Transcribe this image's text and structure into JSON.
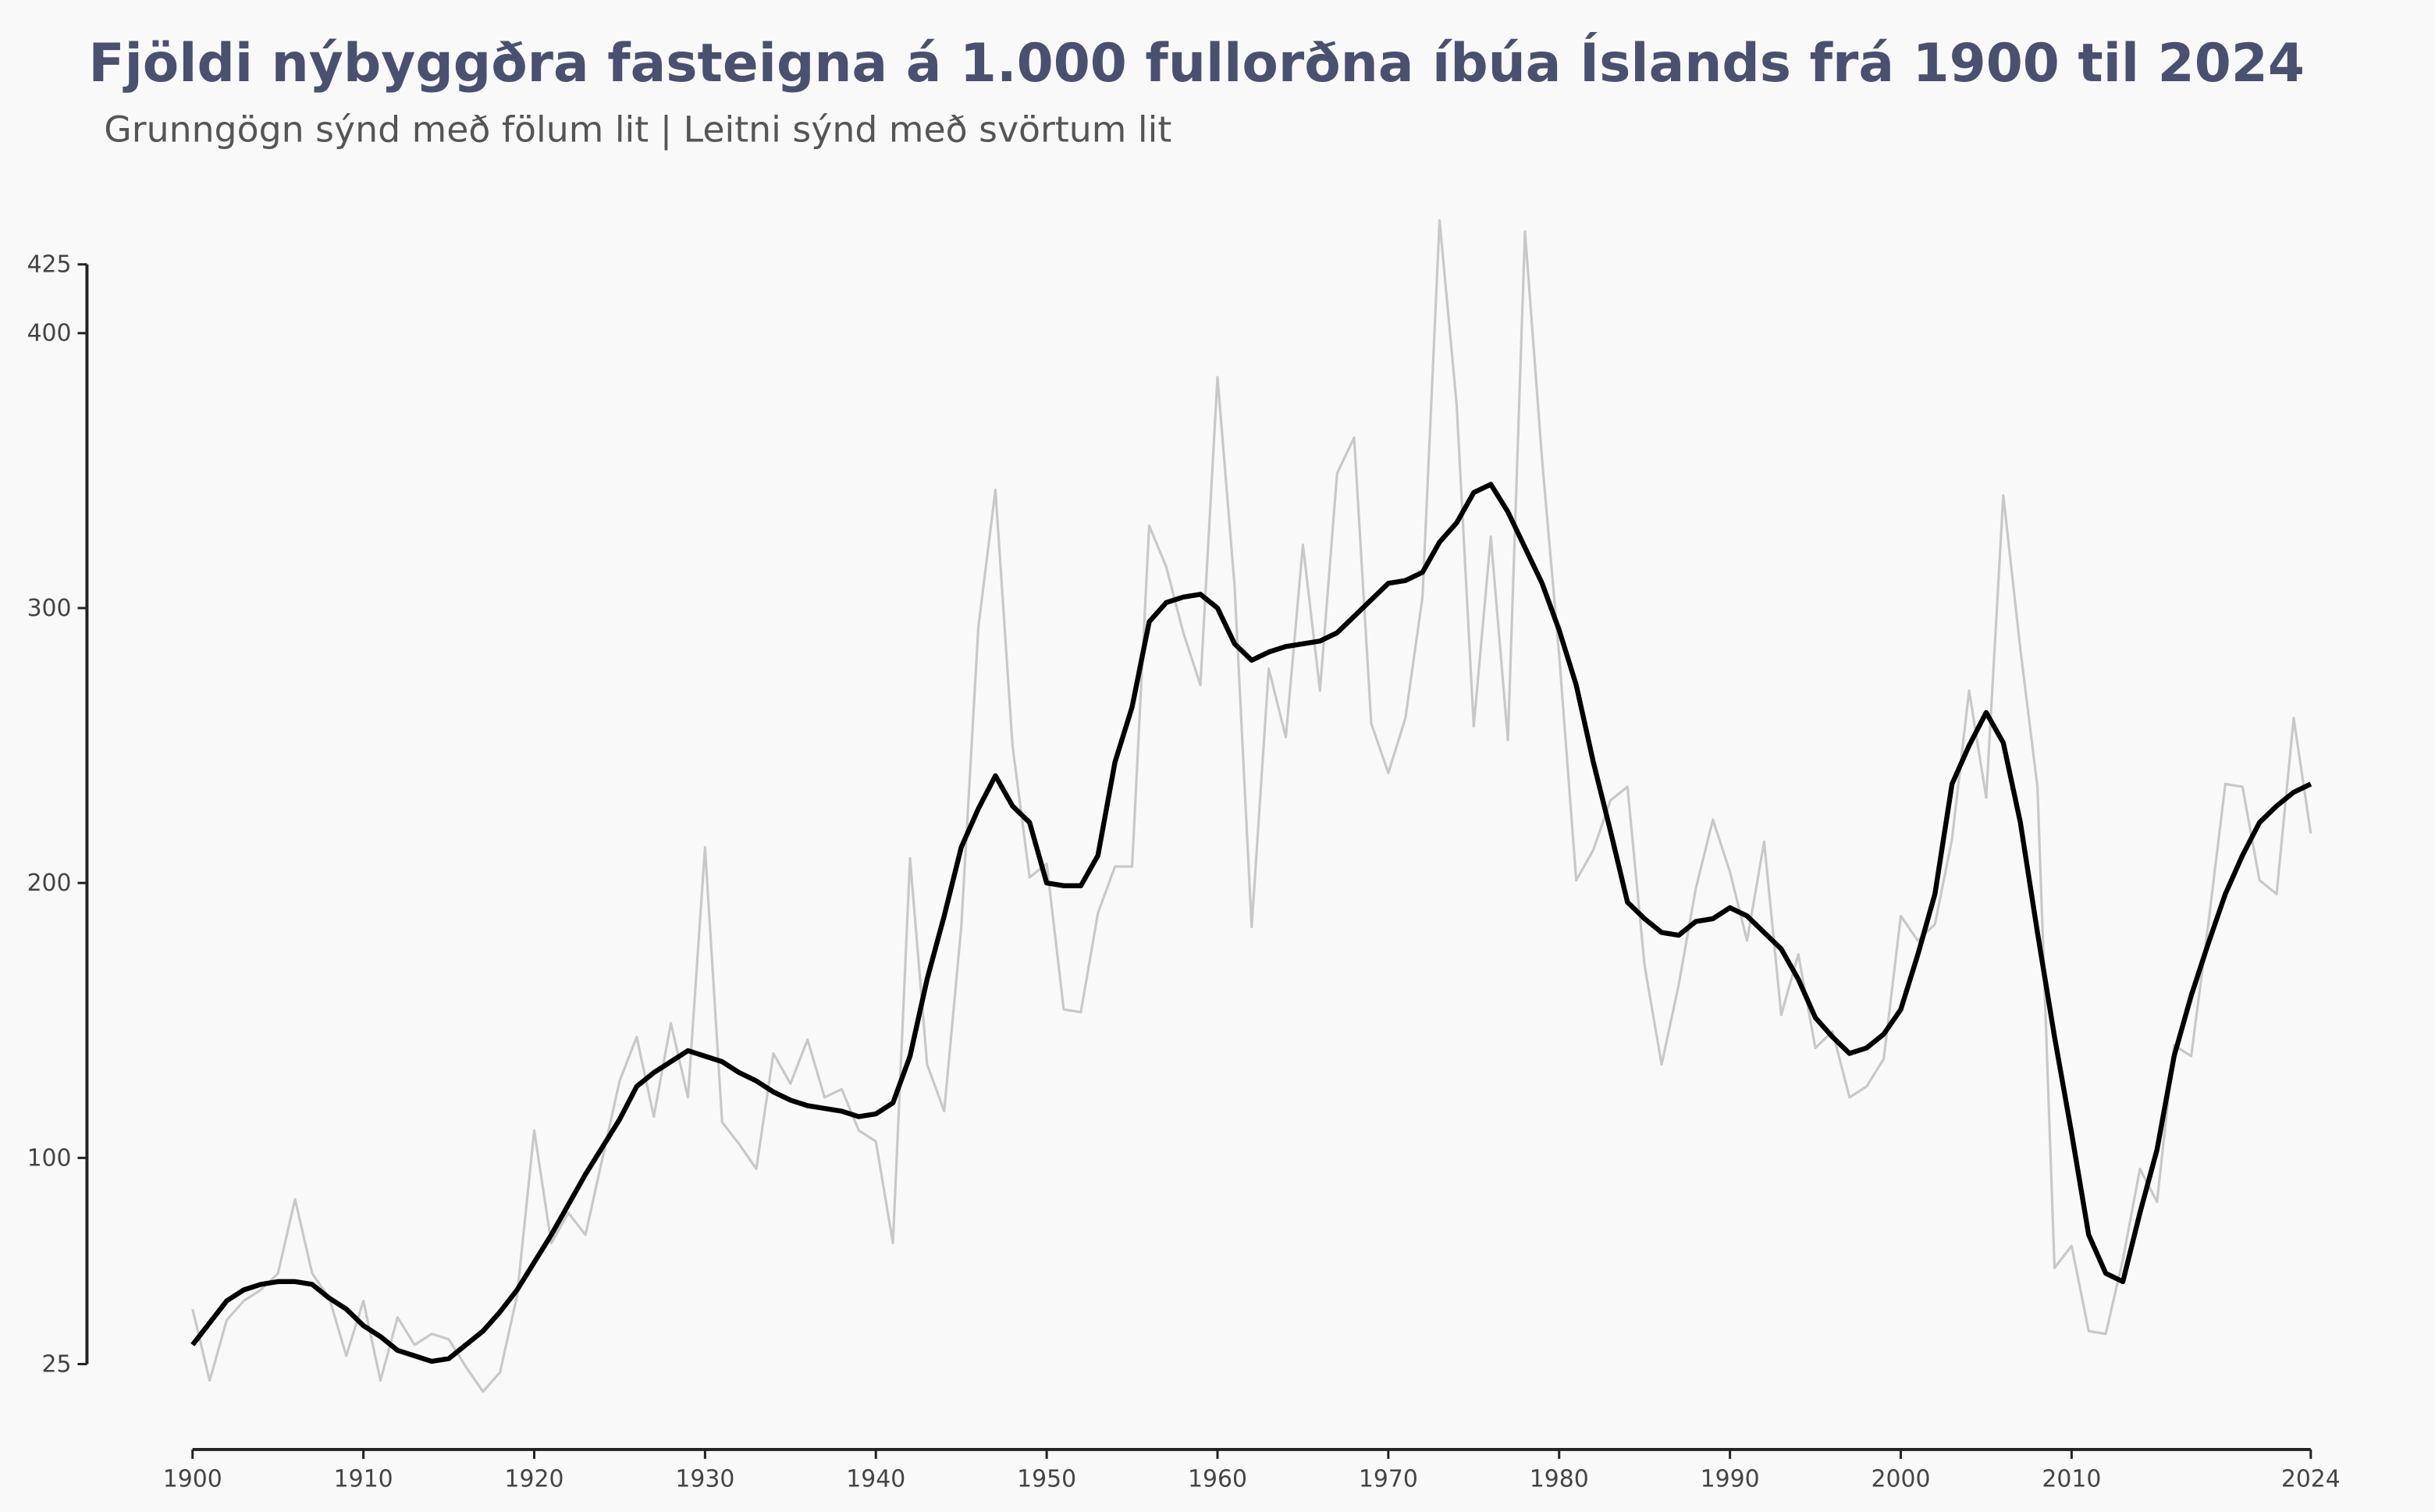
{
  "chart_data": {
    "type": "line",
    "title": "Fjöldi nýbyggðra fasteigna á 1.000 fullorðna íbúa Íslands frá 1900 til 2024",
    "subtitle": "Grunngögn sýnd með fölum lit | Leitni sýnd með svörtum lit",
    "x": [
      1900,
      1901,
      1902,
      1903,
      1904,
      1905,
      1906,
      1907,
      1908,
      1909,
      1910,
      1911,
      1912,
      1913,
      1914,
      1915,
      1916,
      1917,
      1918,
      1919,
      1920,
      1921,
      1922,
      1923,
      1924,
      1925,
      1926,
      1927,
      1928,
      1929,
      1930,
      1931,
      1932,
      1933,
      1934,
      1935,
      1936,
      1937,
      1938,
      1939,
      1940,
      1941,
      1942,
      1943,
      1944,
      1945,
      1946,
      1947,
      1948,
      1949,
      1950,
      1951,
      1952,
      1953,
      1954,
      1955,
      1956,
      1957,
      1958,
      1959,
      1960,
      1961,
      1962,
      1963,
      1964,
      1965,
      1966,
      1967,
      1968,
      1969,
      1970,
      1971,
      1972,
      1973,
      1974,
      1975,
      1976,
      1977,
      1978,
      1979,
      1980,
      1981,
      1982,
      1983,
      1984,
      1985,
      1986,
      1987,
      1988,
      1989,
      1990,
      1991,
      1992,
      1993,
      1994,
      1995,
      1996,
      1997,
      1998,
      1999,
      2000,
      2001,
      2002,
      2003,
      2004,
      2005,
      2006,
      2007,
      2008,
      2009,
      2010,
      2011,
      2012,
      2013,
      2014,
      2015,
      2016,
      2017,
      2018,
      2019,
      2020,
      2021,
      2022,
      2023,
      2024
    ],
    "series": [
      {
        "color": "#c8c8c8",
        "values": [
          45,
          19,
          41,
          48,
          52,
          58,
          85,
          58,
          49,
          28,
          48,
          19,
          42,
          32,
          36,
          34,
          24,
          15,
          22,
          50,
          110,
          69,
          80,
          72,
          100,
          128,
          144,
          115,
          149,
          122,
          213,
          113,
          105,
          96,
          138,
          127,
          143,
          122,
          125,
          110,
          106,
          69,
          209,
          134,
          117,
          184,
          293,
          343,
          250,
          202,
          207,
          154,
          153,
          189,
          206,
          206,
          330,
          315,
          291,
          272,
          384,
          308,
          184,
          278,
          253,
          323,
          270,
          349,
          362,
          258,
          240,
          260,
          304,
          441,
          374,
          257,
          326,
          252,
          437,
          354,
          283,
          201,
          212,
          230,
          235,
          170,
          134,
          163,
          198,
          223,
          204,
          179,
          215,
          152,
          174,
          140,
          146,
          122,
          126,
          136,
          188,
          179,
          185,
          216,
          270,
          231,
          341,
          285,
          235,
          60,
          68,
          37,
          36,
          63,
          96,
          84,
          141,
          137,
          185,
          236,
          235,
          201,
          196,
          260,
          218
        ]
      },
      {
        "color": "#000000",
        "values": [
          32,
          40,
          48,
          52,
          54,
          55,
          55,
          54,
          49,
          45,
          39,
          35,
          30,
          28,
          26,
          27,
          32,
          37,
          44,
          52,
          62,
          72,
          83,
          94,
          104,
          114,
          126,
          131,
          135,
          139,
          137,
          135,
          131,
          128,
          124,
          121,
          119,
          118,
          117,
          115,
          116,
          120,
          137,
          165,
          188,
          213,
          227,
          239,
          228,
          222,
          200,
          199,
          199,
          210,
          244,
          264,
          295,
          302,
          304,
          305,
          300,
          287,
          281,
          284,
          286,
          287,
          288,
          291,
          297,
          303,
          309,
          310,
          313,
          324,
          331,
          342,
          345,
          335,
          322,
          309,
          292,
          272,
          244,
          219,
          193,
          187,
          182,
          181,
          186,
          187,
          191,
          188,
          182,
          176,
          165,
          151,
          144,
          138,
          140,
          145,
          154,
          174,
          196,
          236,
          250,
          262,
          251,
          222,
          182,
          144,
          109,
          72,
          58,
          55,
          80,
          103,
          137,
          159,
          178,
          196,
          210,
          222,
          228,
          233,
          236
        ]
      }
    ],
    "xlim": [
      1900,
      2024
    ],
    "xticks": [
      1900,
      1910,
      1920,
      1930,
      1940,
      1950,
      1960,
      1970,
      1980,
      1990,
      2000,
      2010,
      2024
    ],
    "ylim": [
      25,
      425
    ],
    "yticks": [
      25,
      100,
      200,
      300,
      400,
      425
    ],
    "grid": false
  }
}
